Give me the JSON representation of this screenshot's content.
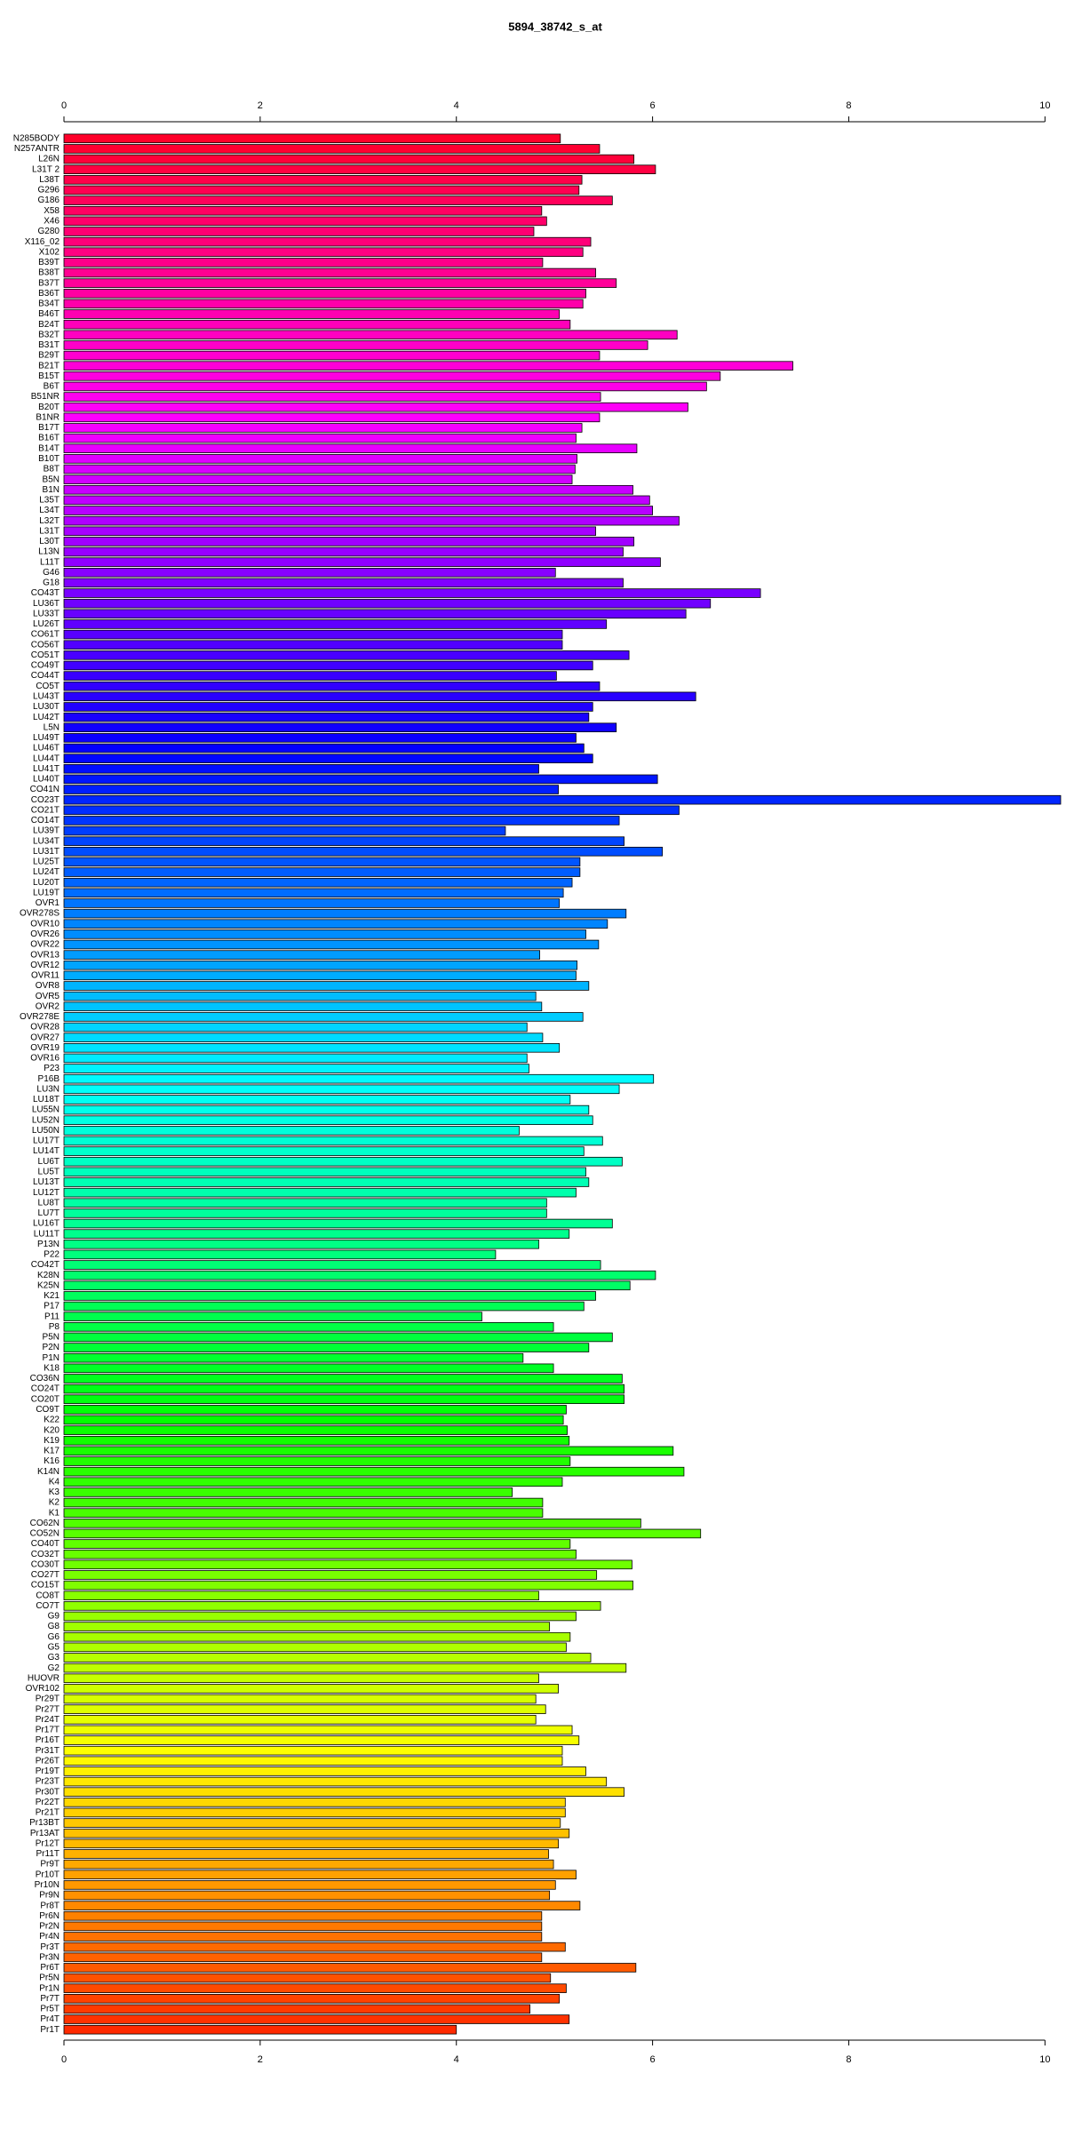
{
  "chart_data": {
    "type": "bar",
    "orientation": "horizontal",
    "title": "5894_38742_s_at",
    "categories": [
      "N285BODY",
      "N257ANTR",
      "L26N",
      "L31T 2",
      "L38T",
      "G296",
      "G186",
      "X58",
      "X46",
      "G280",
      "X116_02",
      "X102",
      "B39T",
      "B38T",
      "B37T",
      "B36T",
      "B34T",
      "B46T",
      "B24T",
      "B32T",
      "B31T",
      "B29T",
      "B21T",
      "B15T",
      "B6T",
      "B51NR",
      "B20T",
      "B1NR",
      "B17T",
      "B16T",
      "B14T",
      "B10T",
      "B8T",
      "B5N",
      "B1N",
      "L35T",
      "L34T",
      "L32T",
      "L31T",
      "L30T",
      "L13N",
      "L11T",
      "G46",
      "G18",
      "CO43T",
      "LU36T",
      "LU33T",
      "LU26T",
      "CO61T",
      "CO56T",
      "CO51T",
      "CO49T",
      "CO44T",
      "CO5T",
      "LU43T",
      "LU30T",
      "LU42T",
      "L5N",
      "LU49T",
      "LU46T",
      "LU44T",
      "LU41T",
      "LU40T",
      "CO41N",
      "CO23T",
      "CO21T",
      "CO14T",
      "LU39T",
      "LU34T",
      "LU31T",
      "LU25T",
      "LU24T",
      "LU20T",
      "LU19T",
      "OVR1",
      "OVR278S",
      "OVR10",
      "OVR26",
      "OVR22",
      "OVR13",
      "OVR12",
      "OVR11",
      "OVR8",
      "OVR5",
      "OVR2",
      "OVR278E",
      "OVR28",
      "OVR27",
      "OVR19",
      "OVR16",
      "P23",
      "P16B",
      "LU3N",
      "LU18T",
      "LU55N",
      "LU52N",
      "LU50N",
      "LU17T",
      "LU14T",
      "LU6T",
      "LU5T",
      "LU13T",
      "LU12T",
      "LU8T",
      "LU7T",
      "LU16T",
      "LU11T",
      "P13N",
      "P22",
      "CO42T",
      "K28N",
      "K25N",
      "K21",
      "P17",
      "P11",
      "P8",
      "P5N",
      "P2N",
      "P1N",
      "K18",
      "CO36N",
      "CO24T",
      "CO20T",
      "CO9T",
      "K22",
      "K20",
      "K19",
      "K17",
      "K16",
      "K14N",
      "K4",
      "K3",
      "K2",
      "K1",
      "CO62N",
      "CO52N",
      "CO40T",
      "CO32T",
      "CO30T",
      "CO27T",
      "CO15T",
      "CO8T",
      "CO7T",
      "G9",
      "G8",
      "G6",
      "G5",
      "G3",
      "G2",
      "HUOVR",
      "OVR102",
      "Pr29T",
      "Pr27T",
      "Pr24T",
      "Pr17T",
      "Pr16T",
      "Pr31T",
      "Pr26T",
      "Pr19T",
      "Pr23T",
      "Pr30T",
      "Pr22T",
      "Pr21T",
      "Pr13BT",
      "Pr13AT",
      "Pr12T",
      "Pr11T",
      "Pr9T",
      "Pr10T",
      "Pr10N",
      "Pr9N",
      "Pr8T",
      "Pr6N",
      "Pr2N",
      "Pr4N",
      "Pr3T",
      "Pr3N",
      "Pr6T",
      "Pr5N",
      "Pr1N",
      "Pr7T",
      "Pr5T",
      "Pr4T",
      "Pr1T"
    ],
    "values": [
      5.06,
      5.46,
      5.81,
      6.03,
      5.28,
      5.25,
      5.59,
      4.87,
      4.92,
      4.79,
      5.37,
      5.29,
      4.88,
      5.42,
      5.63,
      5.32,
      5.29,
      5.05,
      5.16,
      6.25,
      5.95,
      5.46,
      7.43,
      6.69,
      6.55,
      5.47,
      6.36,
      5.46,
      5.28,
      5.22,
      5.84,
      5.23,
      5.21,
      5.18,
      5.8,
      5.97,
      6.0,
      6.27,
      5.42,
      5.81,
      5.7,
      6.08,
      5.01,
      5.7,
      7.1,
      6.59,
      6.34,
      5.53,
      5.08,
      5.08,
      5.76,
      5.39,
      5.02,
      5.46,
      6.44,
      5.39,
      5.35,
      5.63,
      5.22,
      5.3,
      5.39,
      4.84,
      6.05,
      5.04,
      10.16,
      6.27,
      5.66,
      4.5,
      5.71,
      6.1,
      5.26,
      5.26,
      5.18,
      5.09,
      5.05,
      5.73,
      5.54,
      5.32,
      5.45,
      4.85,
      5.23,
      5.22,
      5.35,
      4.81,
      4.87,
      5.29,
      4.72,
      4.88,
      5.05,
      4.72,
      4.74,
      6.01,
      5.66,
      5.16,
      5.35,
      5.39,
      4.64,
      5.49,
      5.3,
      5.69,
      5.32,
      5.35,
      5.22,
      4.92,
      4.92,
      5.59,
      5.15,
      4.84,
      4.4,
      5.47,
      6.03,
      5.77,
      5.42,
      5.3,
      4.26,
      4.99,
      5.59,
      5.35,
      4.68,
      4.99,
      5.69,
      5.71,
      5.71,
      5.12,
      5.09,
      5.13,
      5.15,
      6.21,
      5.16,
      6.32,
      5.08,
      4.57,
      4.88,
      4.88,
      5.88,
      6.49,
      5.16,
      5.22,
      5.79,
      5.43,
      5.8,
      4.84,
      5.47,
      5.22,
      4.95,
      5.16,
      5.12,
      5.37,
      5.73,
      4.84,
      5.04,
      4.81,
      4.91,
      4.81,
      5.18,
      5.25,
      5.08,
      5.08,
      5.32,
      5.53,
      5.71,
      5.11,
      5.11,
      5.06,
      5.15,
      5.04,
      4.94,
      4.99,
      5.22,
      5.01,
      4.95,
      5.26,
      4.87,
      4.87,
      4.87,
      5.11,
      4.87,
      5.83,
      4.96,
      5.12,
      5.05,
      4.75,
      5.15,
      4.0
    ],
    "xlim": [
      0,
      10.16
    ],
    "xticks": [
      0,
      2,
      4,
      6,
      8,
      10
    ],
    "color_hue_range": [
      350,
      10
    ]
  }
}
